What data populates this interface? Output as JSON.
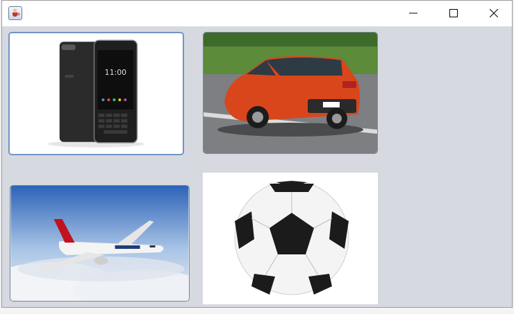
{
  "window": {
    "title": "",
    "icon": "java-cup-icon",
    "controls": {
      "minimize_icon": "minimize-icon",
      "maximize_icon": "maximize-icon",
      "close_icon": "close-icon"
    }
  },
  "gallery": {
    "items": [
      {
        "subject": "phone-image",
        "selected": true
      },
      {
        "subject": "car-image",
        "selected": false
      },
      {
        "subject": "airplane-image",
        "selected": false
      },
      {
        "subject": "soccer-ball-image",
        "selected": false
      }
    ]
  },
  "colors": {
    "content_background": "#d6d9e0",
    "selection_border": "#6f95c5",
    "car": "#d9461b"
  }
}
